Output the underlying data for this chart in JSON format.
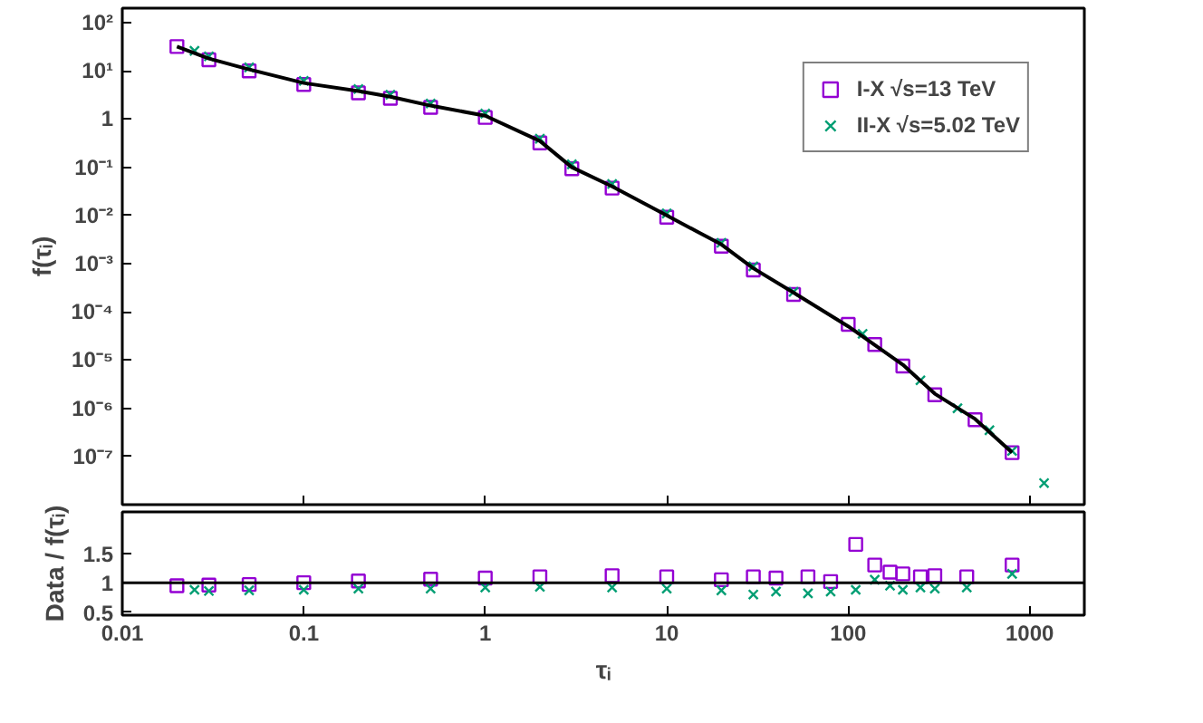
{
  "chart_data": [
    {
      "type": "scatter",
      "ylabel": "f(τᵢ)",
      "xlim": [
        0.01,
        2000
      ],
      "ylim": [
        1e-08,
        200
      ],
      "log": "xy",
      "tick_labels": "y",
      "legend": "top right",
      "grid": false,
      "xticks": [
        0.01,
        0.1,
        1,
        10,
        100,
        1000
      ],
      "yticks": [
        {
          "value": 100,
          "label": "10²"
        },
        {
          "value": 10,
          "label": "10¹"
        },
        1,
        {
          "value": 0.1,
          "label": "10⁻¹"
        },
        {
          "value": 0.01,
          "label": "10⁻²"
        },
        {
          "value": 0.001,
          "label": "10⁻³"
        },
        {
          "value": 0.0001,
          "label": "10⁻⁴"
        },
        {
          "value": 1e-05,
          "label": "10⁻⁵"
        },
        {
          "value": 1e-06,
          "label": "10⁻⁶"
        },
        {
          "value": 1e-07,
          "label": "10⁻⁷"
        }
      ],
      "series": [
        {
          "name": "I-X √s=13 TeV",
          "color": "#9400d3",
          "marker": "square",
          "x": [
            0.02,
            0.03,
            0.05,
            0.1,
            0.2,
            0.3,
            0.5,
            1,
            2,
            3,
            5,
            10,
            20,
            30,
            50,
            100,
            140,
            200,
            300,
            500,
            800
          ],
          "values": [
            32,
            17,
            10,
            5.2,
            3.5,
            2.7,
            1.75,
            1.08,
            0.32,
            0.093,
            0.037,
            0.0092,
            0.0023,
            0.00074,
            0.00023,
            5.5e-05,
            2.1e-05,
            7.5e-06,
            1.9e-06,
            5.8e-07,
            1.2e-07
          ]
        },
        {
          "name": "II-X √s=5.02 TeV",
          "color": "#009e73",
          "marker": "cross",
          "x": [
            0.025,
            0.03,
            0.05,
            0.1,
            0.2,
            0.3,
            0.5,
            1,
            2,
            3,
            5,
            10,
            20,
            30,
            50,
            120,
            250,
            400,
            600,
            800,
            1200
          ],
          "values": [
            26,
            20,
            11.8,
            6.2,
            4.2,
            3.2,
            2.1,
            1.3,
            0.39,
            0.115,
            0.045,
            0.011,
            0.0027,
            0.00088,
            0.00026,
            3.5e-05,
            3.8e-06,
            1e-06,
            3.5e-07,
            1.3e-07,
            2.8e-08
          ]
        },
        {
          "type": "line",
          "color": "#000000",
          "x": [
            0.02,
            0.03,
            0.05,
            0.1,
            0.2,
            0.3,
            0.5,
            1,
            2,
            3,
            5,
            10,
            20,
            30,
            50,
            100,
            200,
            300,
            500,
            800
          ],
          "values": [
            32,
            18,
            10.7,
            5.6,
            3.8,
            2.9,
            1.9,
            1.17,
            0.35,
            0.1,
            0.04,
            0.01,
            0.0025,
            0.0008,
            0.00025,
            5e-05,
            8e-06,
            2e-06,
            6e-07,
            1.2e-07
          ]
        }
      ]
    },
    {
      "type": "scatter",
      "xlabel": "τᵢ",
      "ylabel": "Data / f(τᵢ)",
      "xlim": [
        0.01,
        2000
      ],
      "ylim": [
        0.45,
        2.2
      ],
      "log": "x",
      "grid": false,
      "xticks": [
        0.01,
        0.1,
        1,
        10,
        100,
        1000
      ],
      "yticks": [
        0.5,
        1,
        1.5
      ],
      "ref_lines": [
        {
          "axis": "y",
          "value": 1,
          "color": "#000000"
        }
      ],
      "series": [
        {
          "color": "#9400d3",
          "marker": "square",
          "x": [
            0.02,
            0.03,
            0.05,
            0.1,
            0.2,
            0.5,
            1,
            2,
            5,
            10,
            20,
            30,
            40,
            60,
            80,
            110,
            140,
            170,
            200,
            250,
            300,
            450,
            800
          ],
          "values": [
            0.95,
            0.96,
            0.97,
            1.0,
            1.03,
            1.06,
            1.08,
            1.1,
            1.12,
            1.1,
            1.05,
            1.1,
            1.08,
            1.1,
            1.02,
            1.65,
            1.3,
            1.18,
            1.15,
            1.1,
            1.12,
            1.1,
            1.3
          ]
        },
        {
          "color": "#009e73",
          "marker": "cross",
          "x": [
            0.025,
            0.03,
            0.05,
            0.1,
            0.2,
            0.5,
            1,
            2,
            5,
            10,
            20,
            30,
            40,
            60,
            80,
            110,
            140,
            170,
            200,
            250,
            300,
            450,
            800
          ],
          "values": [
            0.88,
            0.86,
            0.87,
            0.88,
            0.9,
            0.9,
            0.92,
            0.93,
            0.92,
            0.9,
            0.87,
            0.8,
            0.85,
            0.82,
            0.85,
            0.88,
            1.05,
            0.95,
            0.88,
            0.92,
            0.9,
            0.92,
            1.15
          ]
        }
      ]
    }
  ]
}
